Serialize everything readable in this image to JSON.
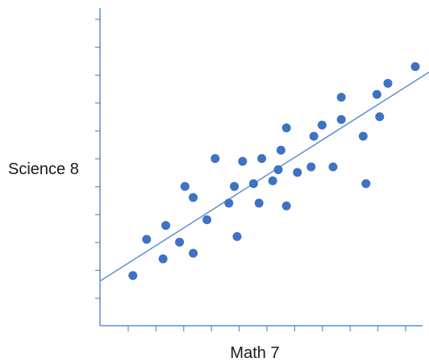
{
  "chart_data": {
    "type": "scatter",
    "xlabel": "Math 7",
    "ylabel": "Science 8",
    "xlim": [
      0,
      12
    ],
    "ylim": [
      0,
      11.4
    ],
    "grid": false,
    "axis_color": "#5b8fd0",
    "point_color": "#3d72c4",
    "trendline_color": "#5b8fd0",
    "points": [
      {
        "x": 1.2,
        "y": 1.8
      },
      {
        "x": 1.7,
        "y": 3.1
      },
      {
        "x": 2.3,
        "y": 2.4
      },
      {
        "x": 2.4,
        "y": 3.6
      },
      {
        "x": 2.9,
        "y": 3.0
      },
      {
        "x": 3.1,
        "y": 5.0
      },
      {
        "x": 3.4,
        "y": 4.6
      },
      {
        "x": 3.4,
        "y": 2.6
      },
      {
        "x": 3.9,
        "y": 3.8
      },
      {
        "x": 4.2,
        "y": 6.0
      },
      {
        "x": 4.7,
        "y": 4.4
      },
      {
        "x": 4.9,
        "y": 5.0
      },
      {
        "x": 5.0,
        "y": 3.2
      },
      {
        "x": 5.2,
        "y": 5.9
      },
      {
        "x": 5.6,
        "y": 5.1
      },
      {
        "x": 5.8,
        "y": 4.4
      },
      {
        "x": 5.9,
        "y": 6.0
      },
      {
        "x": 6.3,
        "y": 5.2
      },
      {
        "x": 6.5,
        "y": 5.6
      },
      {
        "x": 6.6,
        "y": 6.3
      },
      {
        "x": 6.8,
        "y": 7.1
      },
      {
        "x": 6.8,
        "y": 4.3
      },
      {
        "x": 7.2,
        "y": 5.5
      },
      {
        "x": 7.7,
        "y": 5.7
      },
      {
        "x": 7.8,
        "y": 6.8
      },
      {
        "x": 8.1,
        "y": 7.2
      },
      {
        "x": 8.5,
        "y": 5.7
      },
      {
        "x": 8.8,
        "y": 7.4
      },
      {
        "x": 8.8,
        "y": 8.2
      },
      {
        "x": 9.6,
        "y": 6.8
      },
      {
        "x": 9.7,
        "y": 5.1
      },
      {
        "x": 10.1,
        "y": 8.3
      },
      {
        "x": 10.2,
        "y": 7.5
      },
      {
        "x": 10.5,
        "y": 8.7
      },
      {
        "x": 11.5,
        "y": 9.3
      }
    ],
    "trendline": {
      "x": [
        0,
        12
      ],
      "y": [
        1.6,
        9.1
      ]
    },
    "x_tick_count": 11,
    "y_tick_count": 11
  }
}
